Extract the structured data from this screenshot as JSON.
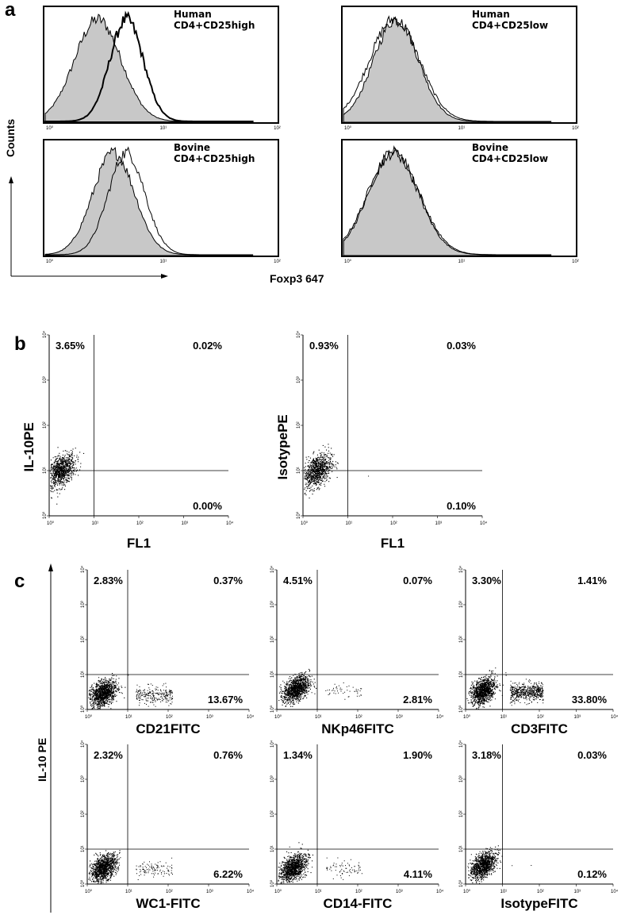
{
  "panel_letters": [
    "a",
    "b",
    "c"
  ],
  "panel_a": {
    "ylabel": "Counts",
    "xlabel": "Foxp3 647",
    "ticks": [
      "10⁰",
      "10¹",
      "10²"
    ]
  },
  "panel_b": {
    "ticks": [
      "10⁰",
      "10¹",
      "10²",
      "10³",
      "10⁴"
    ]
  },
  "panel_c": {
    "ylabel": "IL-10 PE",
    "ticks": [
      "10⁰",
      "10¹",
      "10²",
      "10³",
      "10⁴"
    ]
  },
  "chart_data": [
    {
      "type": "area",
      "panel": "a",
      "label_line1": "Human",
      "label_line2": "CD4+CD25high",
      "x_scale": "log",
      "xlim": [
        1,
        1000
      ],
      "series": [
        {
          "peak": 4.5,
          "width": 0.28,
          "fill": true
        },
        {
          "peak": 10,
          "width": 0.2,
          "fill": false
        }
      ]
    },
    {
      "type": "area",
      "panel": "a",
      "label_line1": "Human",
      "label_line2": "CD4+CD25low",
      "x_scale": "log",
      "xlim": [
        1,
        1000
      ],
      "series": [
        {
          "peak": 4.5,
          "width": 0.27,
          "fill": true
        },
        {
          "peak": 4.3,
          "width": 0.3,
          "fill": false
        }
      ]
    },
    {
      "type": "area",
      "panel": "a",
      "label_line1": "Bovine",
      "label_line2": "CD4+CD25high",
      "x_scale": "log",
      "xlim": [
        1,
        1000
      ],
      "series": [
        {
          "peak": 7,
          "width": 0.25,
          "fill": true
        },
        {
          "peak": 10,
          "width": 0.22,
          "fill": false
        }
      ]
    },
    {
      "type": "area",
      "panel": "a",
      "label_line1": "Bovine",
      "label_line2": "CD4+CD25low",
      "x_scale": "log",
      "xlim": [
        1,
        1000
      ],
      "series": [
        {
          "peak": 4.2,
          "width": 0.3,
          "fill": true
        },
        {
          "peak": 4.2,
          "width": 0.31,
          "fill": false
        }
      ]
    },
    {
      "type": "scatter",
      "panel": "b",
      "ylabel": "IL-10PE",
      "xlabel": "FL1",
      "quadrants": {
        "ul": "3.65%",
        "ur": "0.02%",
        "lr": "0.00%"
      },
      "cluster": [
        1.8,
        10
      ],
      "xlim": [
        1,
        10000
      ],
      "ylim": [
        1,
        10000
      ]
    },
    {
      "type": "scatter",
      "panel": "b",
      "ylabel": "IsotypePE",
      "xlabel": "FL1",
      "quadrants": {
        "ul": "0.93%",
        "ur": "0.03%",
        "lr": "0.10%"
      },
      "cluster": [
        2,
        10
      ],
      "xlim": [
        1,
        10000
      ],
      "ylim": [
        1,
        10000
      ]
    },
    {
      "type": "scatter",
      "panel": "c",
      "xlabel": "CD21FITC",
      "quadrants": {
        "ul": "2.83%",
        "ur": "0.37%",
        "lr": "13.67%"
      },
      "cluster": [
        2.5,
        3
      ],
      "xlim": [
        1,
        10000
      ],
      "ylim": [
        1,
        10000
      ]
    },
    {
      "type": "scatter",
      "panel": "c",
      "xlabel": "NKp46FITC",
      "quadrants": {
        "ul": "4.51%",
        "ur": "0.07%",
        "lr": "2.81%"
      },
      "cluster": [
        3,
        4
      ],
      "xlim": [
        1,
        10000
      ],
      "ylim": [
        1,
        10000
      ]
    },
    {
      "type": "scatter",
      "panel": "c",
      "xlabel": "CD3FITC",
      "quadrants": {
        "ul": "3.30%",
        "ur": "1.41%",
        "lr": "33.80%"
      },
      "cluster": [
        3,
        3.5
      ],
      "xlim": [
        1,
        10000
      ],
      "ylim": [
        1,
        10000
      ]
    },
    {
      "type": "scatter",
      "panel": "c",
      "xlabel": "WC1-FITC",
      "quadrants": {
        "ul": "2.32%",
        "ur": "0.76%",
        "lr": "6.22%"
      },
      "cluster": [
        2.5,
        3
      ],
      "xlim": [
        1,
        10000
      ],
      "ylim": [
        1,
        10000
      ]
    },
    {
      "type": "scatter",
      "panel": "c",
      "xlabel": "CD14-FITC",
      "quadrants": {
        "ul": "1.34%",
        "ur": "1.90%",
        "lr": "4.11%"
      },
      "cluster": [
        2.5,
        3
      ],
      "xlim": [
        1,
        10000
      ],
      "ylim": [
        1,
        10000
      ]
    },
    {
      "type": "scatter",
      "panel": "c",
      "xlabel": "IsotypeFITC",
      "quadrants": {
        "ul": "3.18%",
        "ur": "0.03%",
        "lr": "0.12%"
      },
      "cluster": [
        3,
        3.5
      ],
      "xlim": [
        1,
        10000
      ],
      "ylim": [
        1,
        10000
      ]
    }
  ]
}
